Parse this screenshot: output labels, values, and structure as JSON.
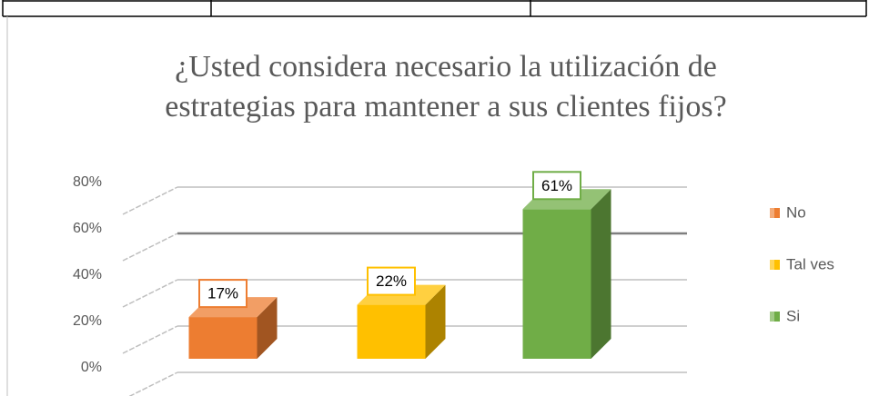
{
  "chart_data": {
    "type": "bar3d",
    "title": "¿Usted considera necesario la utilización de estrategias para mantener a sus clientes fijos?",
    "categories": [
      "No",
      "Tal ves",
      "Si"
    ],
    "values": [
      17,
      22,
      61
    ],
    "value_labels": [
      "17%",
      "22%",
      "61%"
    ],
    "colors": [
      "#ed7d31",
      "#ffc000",
      "#70ad47"
    ],
    "ylim": [
      0,
      80
    ],
    "yticks": [
      {
        "value": 0,
        "label": "0%"
      },
      {
        "value": 20,
        "label": "20%"
      },
      {
        "value": 40,
        "label": "40%"
      },
      {
        "value": 60,
        "label": "60%"
      },
      {
        "value": 80,
        "label": "80%"
      }
    ],
    "grid": true,
    "legend": "right"
  }
}
